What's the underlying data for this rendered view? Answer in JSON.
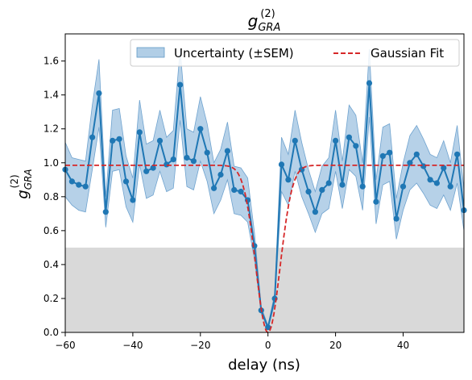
{
  "chart_data": {
    "type": "line",
    "title": {
      "base": "g",
      "sup": "(2)",
      "sub": "GRA"
    },
    "xlabel": "delay (ns)",
    "ylabel": {
      "base": "g",
      "sup": "(2)",
      "sub": "GRA"
    },
    "xlim": [
      -60,
      58
    ],
    "ylim": [
      0,
      1.76
    ],
    "xticks": [
      -60,
      -40,
      -20,
      0,
      20,
      40
    ],
    "yticks": [
      0.0,
      0.2,
      0.4,
      0.6,
      0.8,
      1.0,
      1.2,
      1.4,
      1.6
    ],
    "ytick_labels": [
      "0.0",
      "0.2",
      "0.4",
      "0.6",
      "0.8",
      "1.0",
      "1.2",
      "1.4",
      "1.6"
    ],
    "grid": false,
    "threshold_band": {
      "from": 0,
      "to": 0.5,
      "color": "#d9d9d9"
    },
    "legend": {
      "position": "top-right",
      "entries": [
        "Uncertainty (±SEM)",
        "Gaussian Fit"
      ]
    },
    "colors": {
      "data": "#1f77b4",
      "band": "#9ec2e0",
      "fit": "#d62728"
    },
    "series": [
      {
        "name": "data",
        "x": [
          -60,
          -58,
          -56,
          -54,
          -52,
          -50,
          -48,
          -46,
          -44,
          -42,
          -40,
          -38,
          -36,
          -34,
          -32,
          -30,
          -28,
          -26,
          -24,
          -22,
          -20,
          -18,
          -16,
          -14,
          -12,
          -10,
          -8,
          -6,
          -4,
          -2,
          0,
          2,
          4,
          6,
          8,
          10,
          12,
          14,
          16,
          18,
          20,
          22,
          24,
          26,
          28,
          30,
          32,
          34,
          36,
          38,
          40,
          42,
          44,
          46,
          48,
          50,
          52,
          54,
          56,
          58
        ],
        "y": [
          0.96,
          0.89,
          0.87,
          0.86,
          1.15,
          1.41,
          0.71,
          1.13,
          1.14,
          0.89,
          0.78,
          1.18,
          0.95,
          0.97,
          1.13,
          0.99,
          1.02,
          1.46,
          1.03,
          1.01,
          1.2,
          1.06,
          0.85,
          0.93,
          1.07,
          0.84,
          0.83,
          0.78,
          0.51,
          0.13,
          0.03,
          0.2,
          0.99,
          0.9,
          1.13,
          0.96,
          0.83,
          0.71,
          0.84,
          0.88,
          1.13,
          0.87,
          1.15,
          1.1,
          0.86,
          1.47,
          0.77,
          1.04,
          1.06,
          0.67,
          0.86,
          1.0,
          1.05,
          0.98,
          0.9,
          0.88,
          0.97,
          0.86,
          1.05,
          0.72
        ],
        "lower": [
          0.8,
          0.75,
          0.72,
          0.71,
          0.96,
          1.21,
          0.62,
          0.95,
          0.96,
          0.74,
          0.65,
          0.99,
          0.79,
          0.81,
          0.95,
          0.83,
          0.85,
          1.25,
          0.86,
          0.84,
          1.01,
          0.89,
          0.7,
          0.78,
          0.9,
          0.7,
          0.69,
          0.65,
          0.43,
          0.11,
          0.02,
          0.17,
          0.83,
          0.75,
          0.95,
          0.8,
          0.7,
          0.59,
          0.7,
          0.73,
          0.95,
          0.73,
          0.96,
          0.92,
          0.72,
          1.27,
          0.64,
          0.87,
          0.89,
          0.55,
          0.72,
          0.84,
          0.88,
          0.82,
          0.75,
          0.73,
          0.81,
          0.72,
          0.88,
          0.6
        ],
        "upper": [
          1.12,
          1.03,
          1.02,
          1.01,
          1.34,
          1.61,
          0.8,
          1.31,
          1.32,
          1.04,
          0.91,
          1.37,
          1.11,
          1.13,
          1.31,
          1.15,
          1.19,
          1.67,
          1.2,
          1.18,
          1.39,
          1.23,
          1.0,
          1.08,
          1.24,
          0.98,
          0.97,
          0.91,
          0.59,
          0.15,
          0.04,
          0.23,
          1.15,
          1.05,
          1.31,
          1.12,
          0.96,
          0.83,
          0.98,
          1.03,
          1.31,
          1.01,
          1.34,
          1.28,
          1.0,
          1.67,
          0.9,
          1.21,
          1.23,
          0.79,
          1.0,
          1.16,
          1.22,
          1.14,
          1.05,
          1.03,
          1.13,
          1.0,
          1.22,
          0.84
        ]
      }
    ],
    "fit": {
      "name": "Gaussian Fit",
      "baseline": 0.985,
      "depth": 0.985,
      "center": 0,
      "width": 3.6
    }
  }
}
